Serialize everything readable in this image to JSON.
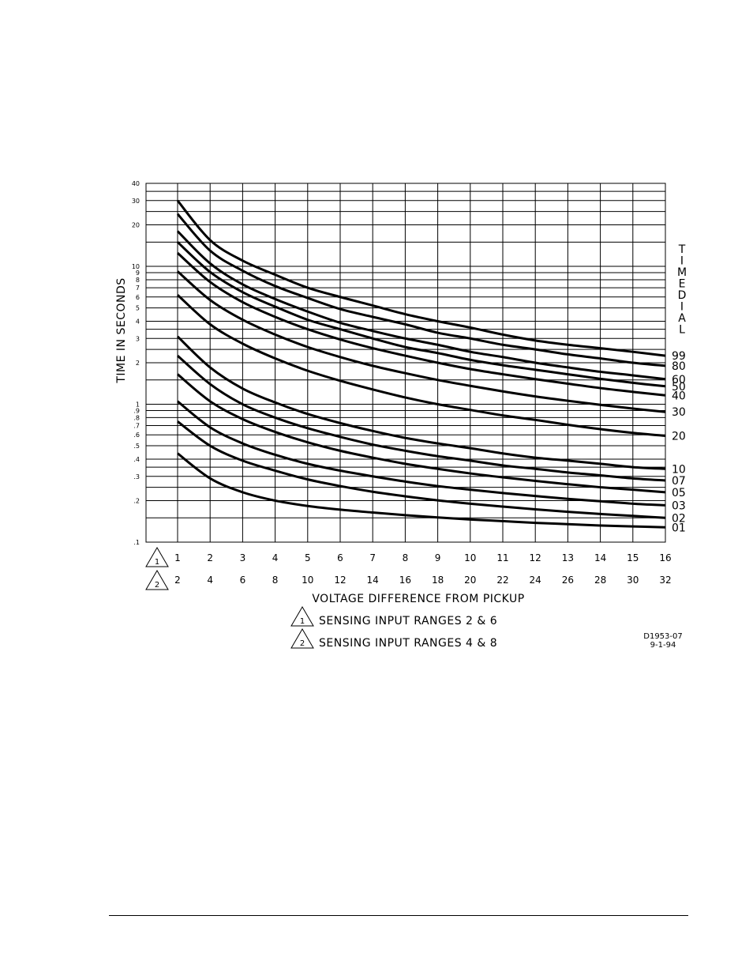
{
  "chart_data": {
    "type": "line",
    "ylabel": "TIME IN SECONDS",
    "xlabel": "VOLTAGE DIFFERENCE FROM PICKUP",
    "yscale": "log",
    "ylim": [
      0.1,
      40
    ],
    "xlim": [
      1,
      16
    ],
    "grid": true,
    "y_ticks": [
      {
        "v": 40,
        "t": "40"
      },
      {
        "v": 30,
        "t": "30"
      },
      {
        "v": 20,
        "t": "20"
      },
      {
        "v": 10,
        "t": "10"
      },
      {
        "v": 9,
        "t": "9"
      },
      {
        "v": 8,
        "t": "8"
      },
      {
        "v": 7,
        "t": "7"
      },
      {
        "v": 6,
        "t": "6"
      },
      {
        "v": 5,
        "t": "5"
      },
      {
        "v": 4,
        "t": "4"
      },
      {
        "v": 3,
        "t": "3"
      },
      {
        "v": 2,
        "t": "2"
      },
      {
        "v": 1,
        "t": "1"
      },
      {
        "v": 0.9,
        "t": ".9"
      },
      {
        "v": 0.8,
        "t": ".8"
      },
      {
        "v": 0.7,
        "t": ".7"
      },
      {
        "v": 0.6,
        "t": ".6"
      },
      {
        "v": 0.5,
        "t": ".5"
      },
      {
        "v": 0.4,
        "t": ".4"
      },
      {
        "v": 0.3,
        "t": ".3"
      },
      {
        "v": 0.2,
        "t": ".2"
      },
      {
        "v": 0.1,
        "t": ".1"
      }
    ],
    "x_scale_1": {
      "marker": "1",
      "ticks": [
        "1",
        "2",
        "3",
        "4",
        "5",
        "6",
        "7",
        "8",
        "9",
        "10",
        "11",
        "12",
        "13",
        "14",
        "15",
        "16"
      ]
    },
    "x_scale_2": {
      "marker": "2",
      "ticks": [
        "2",
        "4",
        "6",
        "8",
        "10",
        "12",
        "14",
        "16",
        "18",
        "20",
        "22",
        "24",
        "26",
        "28",
        "30",
        "32"
      ]
    },
    "x": [
      1,
      2,
      3,
      4,
      5,
      6,
      7,
      8,
      9,
      10,
      11,
      12,
      13,
      14,
      15,
      16
    ],
    "series_title": "TIME DIAL",
    "series": [
      {
        "name": "99",
        "values": [
          30,
          15.5,
          11,
          8.7,
          7,
          6,
          5.2,
          4.5,
          4,
          3.6,
          3.2,
          2.9,
          2.7,
          2.55,
          2.4,
          2.25
        ]
      },
      {
        "name": "80",
        "values": [
          24,
          13,
          9.3,
          7.2,
          5.9,
          4.9,
          4.3,
          3.8,
          3.3,
          3,
          2.7,
          2.5,
          2.3,
          2.15,
          2.0,
          1.9
        ]
      },
      {
        "name": "60",
        "values": [
          18,
          10.5,
          7.4,
          5.8,
          4.7,
          3.9,
          3.4,
          3,
          2.7,
          2.4,
          2.2,
          2.0,
          1.85,
          1.72,
          1.62,
          1.52
        ]
      },
      {
        "name": "50",
        "values": [
          15,
          9.1,
          6.5,
          5.1,
          4.1,
          3.5,
          3,
          2.6,
          2.35,
          2.1,
          1.92,
          1.78,
          1.65,
          1.53,
          1.43,
          1.35
        ]
      },
      {
        "name": "40",
        "values": [
          12.5,
          7.7,
          5.5,
          4.3,
          3.5,
          2.95,
          2.55,
          2.25,
          2.0,
          1.8,
          1.65,
          1.52,
          1.41,
          1.31,
          1.23,
          1.16
        ]
      },
      {
        "name": "30",
        "values": [
          9.2,
          5.7,
          4.1,
          3.2,
          2.6,
          2.2,
          1.9,
          1.68,
          1.5,
          1.36,
          1.24,
          1.14,
          1.06,
          0.99,
          0.93,
          0.88
        ]
      },
      {
        "name": "20",
        "values": [
          6.2,
          3.8,
          2.75,
          2.15,
          1.75,
          1.48,
          1.28,
          1.12,
          1.0,
          0.91,
          0.83,
          0.77,
          0.71,
          0.66,
          0.62,
          0.59
        ]
      },
      {
        "name": "10",
        "values": [
          3.1,
          1.85,
          1.3,
          1.03,
          0.85,
          0.73,
          0.64,
          0.57,
          0.52,
          0.48,
          0.44,
          0.41,
          0.39,
          0.37,
          0.35,
          0.34
        ]
      },
      {
        "name": "07",
        "values": [
          2.25,
          1.4,
          1.0,
          0.8,
          0.67,
          0.58,
          0.51,
          0.46,
          0.42,
          0.39,
          0.36,
          0.34,
          0.32,
          0.305,
          0.29,
          0.28
        ]
      },
      {
        "name": "05",
        "values": [
          1.65,
          1.05,
          0.78,
          0.63,
          0.53,
          0.46,
          0.41,
          0.37,
          0.34,
          0.315,
          0.295,
          0.278,
          0.263,
          0.25,
          0.24,
          0.23
        ]
      },
      {
        "name": "03",
        "values": [
          1.05,
          0.68,
          0.52,
          0.43,
          0.37,
          0.33,
          0.3,
          0.275,
          0.255,
          0.24,
          0.227,
          0.216,
          0.206,
          0.198,
          0.19,
          0.185
        ]
      },
      {
        "name": "02",
        "values": [
          0.75,
          0.5,
          0.39,
          0.33,
          0.285,
          0.255,
          0.232,
          0.215,
          0.201,
          0.19,
          0.181,
          0.173,
          0.166,
          0.16,
          0.155,
          0.15
        ]
      },
      {
        "name": "01",
        "values": [
          0.44,
          0.29,
          0.23,
          0.2,
          0.183,
          0.172,
          0.164,
          0.157,
          0.151,
          0.146,
          0.142,
          0.138,
          0.135,
          0.132,
          0.13,
          0.128
        ]
      }
    ],
    "legend": [
      {
        "marker": "1",
        "text": "SENSING INPUT RANGES 2 & 6"
      },
      {
        "marker": "2",
        "text": "SENSING INPUT RANGES 4 & 8"
      }
    ],
    "drawing_id": "D1953-07",
    "drawing_date": "9-1-94"
  }
}
